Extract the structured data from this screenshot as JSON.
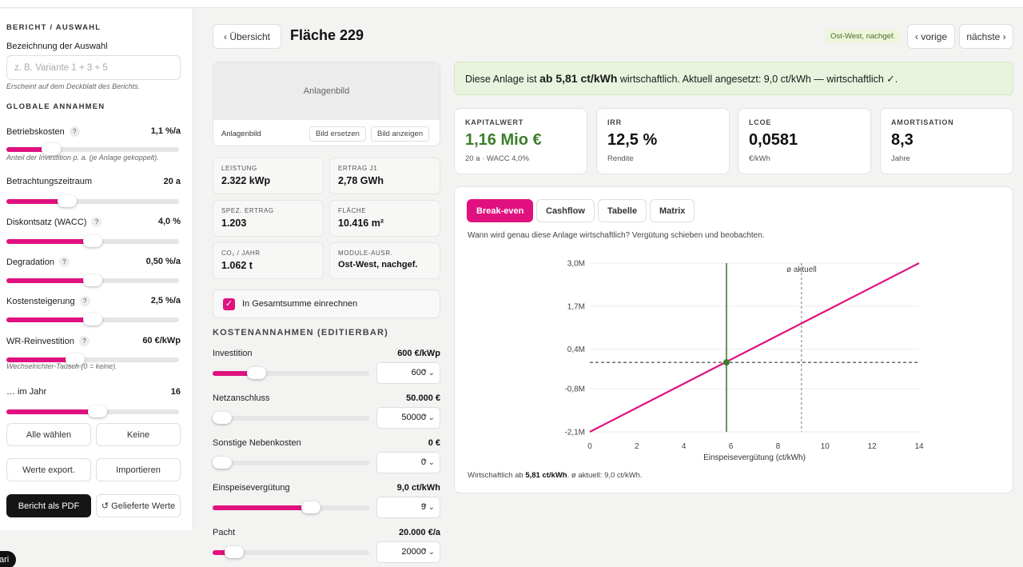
{
  "sidebar": {
    "section_report": "BERICHT / AUSWAHL",
    "name_label": "Bezeichnung der Auswahl",
    "name_placeholder": "z. B. Variante 1 + 3 + 5",
    "name_note": "Erscheint auf dem Deckblatt des Berichts.",
    "section_global": "GLOBALE ANNAHMEN",
    "help_glyph": "?",
    "params": [
      {
        "name": "Betriebskosten",
        "value": "1,1 %/a",
        "fill": 0.26,
        "help": true
      },
      {
        "name": "Betrachtungszeitraum",
        "value": "20 a",
        "fill": 0.35,
        "help": false
      },
      {
        "name": "Diskontsatz (WACC)",
        "value": "4,0 %",
        "fill": 0.5,
        "help": true
      },
      {
        "name": "Degradation",
        "value": "0,50 %/a",
        "fill": 0.5,
        "help": true
      },
      {
        "name": "Kostensteigerung",
        "value": "2,5 %/a",
        "fill": 0.5,
        "help": true
      },
      {
        "name": "WR-Reinvestition",
        "value": "60 €/kWp",
        "fill": 0.4,
        "help": true
      },
      {
        "name": "… im Jahr",
        "value": "16",
        "fill": 0.53,
        "help": false
      }
    ],
    "note_betriebskosten": "Anteil der Investition p. a. (je Anlage gekoppelt).",
    "note_wr": "Wechselrichter-Tausch (0 = keine).",
    "buttons": {
      "select_all": "Alle wählen",
      "none": "Keine",
      "export": "Werte export.",
      "import": "Importieren",
      "pdf": "Bericht als PDF",
      "delivered": "↺ Gelieferte Werte"
    },
    "pill": "ari"
  },
  "header": {
    "back": "‹ Übersicht",
    "title": "Fläche 229",
    "badge": "Ost-West, nachgef.",
    "prev": "‹ vorige",
    "next": "nächste ›"
  },
  "image_card": {
    "placeholder": "Anlagenbild",
    "label": "Anlagenbild",
    "replace": "Bild ersetzen",
    "show": "Bild anzeigen"
  },
  "stats": [
    {
      "k": "LEISTUNG",
      "v": "2.322 kWp"
    },
    {
      "k": "ERTRAG J1",
      "v": "2,78 GWh"
    },
    {
      "k": "SPEZ. ERTRAG",
      "v": "1.203"
    },
    {
      "k": "FLÄCHE",
      "v": "10.416 m²"
    },
    {
      "k": "CO₂ / JAHR",
      "v": "1.062 t"
    },
    {
      "k": "MODULE-AUSR.",
      "v": "Ost-West, nachgef."
    }
  ],
  "include_total": {
    "label": "In Gesamtsumme einrechnen",
    "checked": true,
    "mark": "✓"
  },
  "costs": {
    "title": "KOSTENANNAHMEN (EDITIERBAR)",
    "spin": "⌃⌄",
    "items": [
      {
        "name": "Investition",
        "value": "600 €/kWp",
        "input": "600",
        "fill": 0.28
      },
      {
        "name": "Netzanschluss",
        "value": "50.000 €",
        "input": "50000",
        "fill": 0.02
      },
      {
        "name": "Sonstige Nebenkosten",
        "value": "0 €",
        "input": "0",
        "fill": 0.0
      },
      {
        "name": "Einspeisevergütung",
        "value": "9,0 ct/kWh",
        "input": "9",
        "fill": 0.63
      },
      {
        "name": "Pacht",
        "value": "20.000 €/a",
        "input": "20000",
        "fill": 0.14
      }
    ]
  },
  "banner": {
    "pre": "Diese Anlage ist ",
    "strong": "ab 5,81 ct/kWh",
    "post": " wirtschaftlich. Aktuell angesetzt: 9,0 ct/kWh — wirtschaftlich ✓."
  },
  "kpis": [
    {
      "k": "KAPITALWERT",
      "v": "1,16 Mio €",
      "s": "20 a · WACC 4,0%",
      "green": true
    },
    {
      "k": "IRR",
      "v": "12,5 %",
      "s": "Rendite",
      "green": false
    },
    {
      "k": "LCOE",
      "v": "0,0581",
      "s": "€/kWh",
      "green": false
    },
    {
      "k": "AMORTISATION",
      "v": "8,3",
      "s": "Jahre",
      "green": false
    }
  ],
  "tabs": [
    {
      "label": "Break-even",
      "active": true
    },
    {
      "label": "Cashflow",
      "active": false
    },
    {
      "label": "Tabelle",
      "active": false
    },
    {
      "label": "Matrix",
      "active": false
    }
  ],
  "chart_desc": "Wann wird genau diese Anlage wirtschaftlich? Vergütung schieben und beobachten.",
  "chart_foot": {
    "pre": "Wirtschaftlich ab ",
    "strong": "5,81 ct/kWh",
    "post": ". ø aktuell: 9,0 ct/kWh."
  },
  "colors": {
    "accent": "#e0117f",
    "positive": "#3d7d2a",
    "banner_bg": "#e8f4dd"
  },
  "chart_data": {
    "type": "line",
    "title": "",
    "xlabel": "Einspeisevergütung (ct/kWh)",
    "ylabel": "",
    "xlim": [
      0,
      14
    ],
    "ylim": [
      -2.1,
      3.0
    ],
    "x_ticks": [
      0,
      2,
      4,
      6,
      8,
      10,
      12,
      14
    ],
    "y_ticks": [
      3.0,
      1.7,
      0.4,
      -0.8,
      -2.1
    ],
    "y_tick_labels": [
      "3,0M",
      "1,7M",
      "0,4M",
      "-0,8M",
      "-2,1M"
    ],
    "series": [
      {
        "color": "#e0117f",
        "x": [
          0,
          14
        ],
        "y": [
          -2.1,
          3.0
        ]
      }
    ],
    "break_even": {
      "x": 5.81,
      "y": 0.0
    },
    "current": {
      "x": 9.0,
      "label": "ø aktuell"
    },
    "grid": true,
    "legend": "none"
  }
}
